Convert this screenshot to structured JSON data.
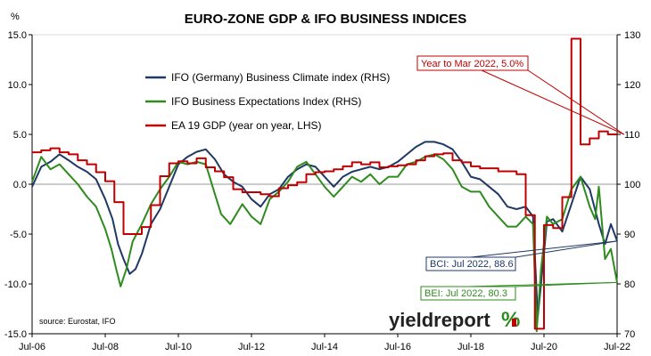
{
  "chart_data": {
    "type": "line",
    "title": "EURO-ZONE GDP & IFO BUSINESS INDICES",
    "left_axis_unit": "%",
    "ylim_left": [
      -15,
      15
    ],
    "ylim_right": [
      70,
      130
    ],
    "yticks_left": [
      "15.0",
      "10.0",
      "5.0",
      "0.0",
      "-5.0",
      "-10.0",
      "-15.0"
    ],
    "yticks_right": [
      "130",
      "120",
      "110",
      "100",
      "90",
      "80",
      "70"
    ],
    "xlim": [
      2006.5,
      2022.5
    ],
    "xticks": [
      "Jul-06",
      "Jul-08",
      "Jul-10",
      "Jul-12",
      "Jul-14",
      "Jul-16",
      "Jul-18",
      "Jul-20",
      "Jul-22"
    ],
    "grid": false,
    "legend_position": "top-left",
    "source": "source: Eurostat, IFO",
    "brand": "yieldreport",
    "colors": {
      "ifo_bci": "#1f3864",
      "ifo_bei": "#2e8b1e",
      "gdp": "#c00000"
    },
    "series": [
      {
        "name": "IFO (Germany) Business Climate index (RHS)",
        "axis": "right",
        "x": [
          2006.5,
          2006.75,
          2007.0,
          2007.25,
          2007.5,
          2007.75,
          2008.0,
          2008.25,
          2008.5,
          2008.7,
          2008.85,
          2009.0,
          2009.17,
          2009.33,
          2009.5,
          2009.75,
          2010.0,
          2010.25,
          2010.5,
          2010.75,
          2011.0,
          2011.25,
          2011.5,
          2011.75,
          2012.0,
          2012.25,
          2012.5,
          2012.75,
          2013.0,
          2013.25,
          2013.5,
          2013.75,
          2014.0,
          2014.25,
          2014.5,
          2014.75,
          2015.0,
          2015.25,
          2015.5,
          2015.75,
          2016.0,
          2016.25,
          2016.5,
          2016.75,
          2017.0,
          2017.25,
          2017.5,
          2017.75,
          2018.0,
          2018.25,
          2018.5,
          2018.75,
          2019.0,
          2019.25,
          2019.5,
          2019.75,
          2020.0,
          2020.2,
          2020.33,
          2020.42,
          2020.58,
          2020.75,
          2021.0,
          2021.25,
          2021.5,
          2021.75,
          2022.0,
          2022.17,
          2022.33,
          2022.5
        ],
        "values": [
          99.5,
          103.5,
          104.5,
          106.0,
          104.8,
          103.5,
          102.5,
          101.0,
          97.0,
          93.0,
          88.0,
          85.0,
          82.0,
          83.0,
          86.0,
          92.0,
          95.0,
          99.5,
          104.0,
          105.5,
          106.5,
          107.0,
          105.0,
          102.0,
          100.5,
          99.5,
          97.0,
          95.5,
          98.0,
          99.0,
          101.5,
          103.0,
          104.0,
          103.5,
          101.5,
          99.5,
          101.5,
          102.5,
          103.0,
          103.5,
          103.0,
          103.5,
          104.5,
          106.0,
          107.5,
          108.5,
          108.5,
          108.0,
          107.0,
          104.5,
          101.5,
          101.0,
          99.5,
          98.0,
          95.5,
          95.0,
          95.5,
          93.5,
          73.5,
          80.0,
          92.5,
          93.0,
          90.5,
          96.0,
          101.5,
          99.0,
          92.0,
          88.0,
          92.0,
          88.6
        ]
      },
      {
        "name": "IFO Business Expectations Index (RHS)",
        "axis": "right",
        "x": [
          2006.5,
          2006.75,
          2007.0,
          2007.25,
          2007.5,
          2007.75,
          2008.0,
          2008.25,
          2008.5,
          2008.67,
          2008.8,
          2008.92,
          2009.08,
          2009.25,
          2009.5,
          2009.75,
          2010.0,
          2010.25,
          2010.5,
          2010.75,
          2011.0,
          2011.25,
          2011.5,
          2011.67,
          2011.92,
          2012.25,
          2012.5,
          2012.75,
          2013.0,
          2013.25,
          2013.5,
          2013.75,
          2014.0,
          2014.25,
          2014.5,
          2014.75,
          2015.0,
          2015.25,
          2015.5,
          2015.75,
          2016.0,
          2016.25,
          2016.5,
          2016.75,
          2017.0,
          2017.25,
          2017.5,
          2017.75,
          2018.0,
          2018.25,
          2018.5,
          2018.75,
          2019.0,
          2019.25,
          2019.5,
          2019.75,
          2020.0,
          2020.2,
          2020.3,
          2020.42,
          2020.58,
          2020.75,
          2021.0,
          2021.25,
          2021.5,
          2021.75,
          2021.9,
          2022.0,
          2022.17,
          2022.33,
          2022.5
        ],
        "values": [
          100.5,
          105.5,
          103.0,
          104.0,
          102.0,
          100.0,
          97.5,
          95.5,
          91.0,
          87.0,
          83.0,
          79.5,
          83.0,
          88.5,
          92.0,
          96.0,
          99.0,
          101.5,
          104.5,
          104.0,
          104.5,
          104.0,
          98.0,
          94.0,
          92.0,
          96.0,
          93.5,
          92.0,
          97.0,
          98.5,
          100.5,
          103.5,
          104.5,
          102.0,
          99.5,
          97.5,
          99.5,
          101.5,
          100.5,
          102.0,
          100.0,
          101.5,
          101.5,
          104.0,
          104.5,
          105.5,
          106.0,
          105.0,
          103.0,
          99.5,
          98.5,
          98.5,
          95.5,
          93.5,
          91.5,
          91.5,
          93.5,
          92.0,
          70.5,
          83.0,
          93.5,
          92.0,
          93.0,
          99.0,
          101.5,
          95.5,
          93.0,
          99.5,
          85.0,
          87.0,
          80.3
        ]
      },
      {
        "name": "EA 19 GDP (year on year, LHS)",
        "axis": "left",
        "x": [
          2006.5,
          2006.75,
          2007.0,
          2007.25,
          2007.5,
          2007.75,
          2008.0,
          2008.25,
          2008.5,
          2008.75,
          2009.0,
          2009.25,
          2009.5,
          2009.75,
          2010.0,
          2010.25,
          2010.5,
          2010.75,
          2011.0,
          2011.25,
          2011.5,
          2011.75,
          2012.0,
          2012.25,
          2012.5,
          2012.75,
          2013.0,
          2013.25,
          2013.5,
          2013.75,
          2014.0,
          2014.25,
          2014.5,
          2014.75,
          2015.0,
          2015.25,
          2015.5,
          2015.75,
          2016.0,
          2016.25,
          2016.5,
          2016.75,
          2017.0,
          2017.25,
          2017.5,
          2017.75,
          2018.0,
          2018.25,
          2018.5,
          2018.75,
          2019.0,
          2019.25,
          2019.5,
          2019.75,
          2020.0,
          2020.25,
          2020.5,
          2020.75,
          2021.0,
          2021.25,
          2021.5,
          2021.75,
          2022.0,
          2022.25
        ],
        "values": [
          3.2,
          3.4,
          3.6,
          3.2,
          3.0,
          2.4,
          2.0,
          1.2,
          0.3,
          -1.8,
          -5.0,
          -5.0,
          -4.3,
          -2.1,
          0.8,
          2.1,
          2.3,
          2.1,
          2.6,
          1.7,
          1.3,
          0.7,
          -0.5,
          -0.8,
          -0.8,
          -1.0,
          -1.2,
          -0.4,
          -0.1,
          0.2,
          1.0,
          1.2,
          1.3,
          1.5,
          1.8,
          2.2,
          2.0,
          2.2,
          1.7,
          1.8,
          1.9,
          2.0,
          2.4,
          2.8,
          3.0,
          3.1,
          2.4,
          2.2,
          1.8,
          1.6,
          1.6,
          1.3,
          1.3,
          1.0,
          -3.1,
          -14.5,
          -4.1,
          -4.4,
          -1.3,
          14.6,
          4.0,
          4.6,
          5.3,
          5.0
        ]
      }
    ],
    "annotations": [
      {
        "text": "Year to Mar 2022, 5.0%",
        "color": "#c00000",
        "points_to": [
          2022.25,
          5.0
        ],
        "axis": "left"
      },
      {
        "text": "BCI: Jul 2022, 88.6",
        "color": "#1f3864",
        "points_to": [
          2022.5,
          88.6
        ],
        "axis": "right"
      },
      {
        "text": "BEI: Jul 2022, 80.3",
        "color": "#2e8b1e",
        "points_to": [
          2022.5,
          80.3
        ],
        "axis": "right"
      }
    ]
  }
}
